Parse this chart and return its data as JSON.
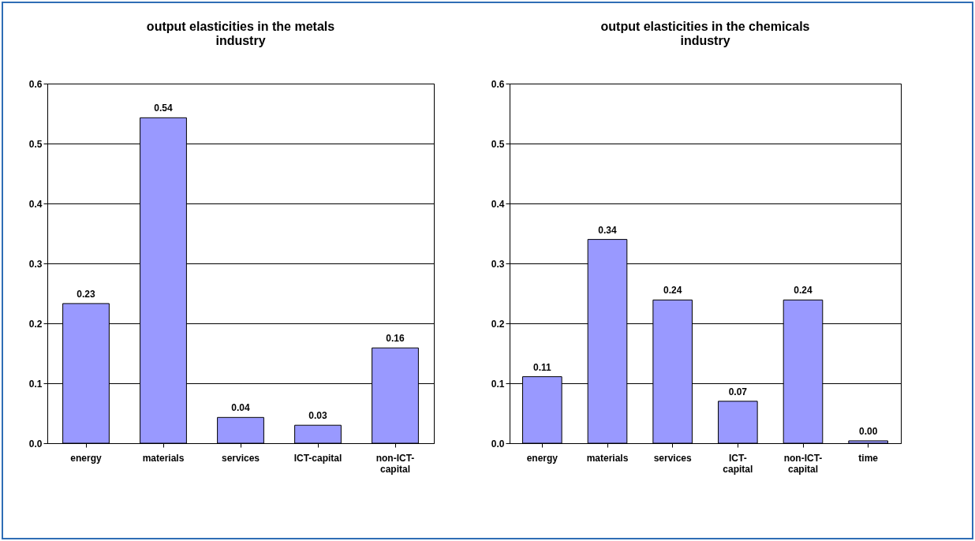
{
  "chart_data": [
    {
      "type": "bar",
      "title": "output elasticities in the metals industry",
      "categories": [
        "energy",
        "materials",
        "services",
        "ICT-capital",
        "non-ICT-capital"
      ],
      "values": [
        0.233,
        0.543,
        0.043,
        0.03,
        0.159
      ],
      "value_labels": [
        "0.23",
        "0.54",
        "0.04",
        "0.03",
        "0.16"
      ],
      "color": "#9999ff",
      "ylim": [
        0,
        0.6
      ],
      "yticks": [
        {
          "value": 0,
          "label": "0.0"
        },
        0.1,
        0.2,
        0.3,
        0.4,
        0.5,
        0.6
      ],
      "grid": "y",
      "legend": false
    },
    {
      "type": "bar",
      "title": "output elasticities in the chemicals industry",
      "categories": [
        "energy",
        "materials",
        "services",
        "ICT-capital",
        "non-ICT-capital",
        "time"
      ],
      "values": [
        0.111,
        0.34,
        0.239,
        0.07,
        0.239,
        0.004
      ],
      "value_labels": [
        "0.11",
        "0.34",
        "0.24",
        "0.07",
        "0.24",
        "0.00"
      ],
      "color": "#9999ff",
      "ylim": [
        0,
        0.6
      ],
      "yticks": [
        {
          "value": 0,
          "label": "0.0"
        },
        0.1,
        0.2,
        0.3,
        0.4,
        0.5,
        0.6
      ],
      "grid": "y",
      "legend": false
    }
  ]
}
